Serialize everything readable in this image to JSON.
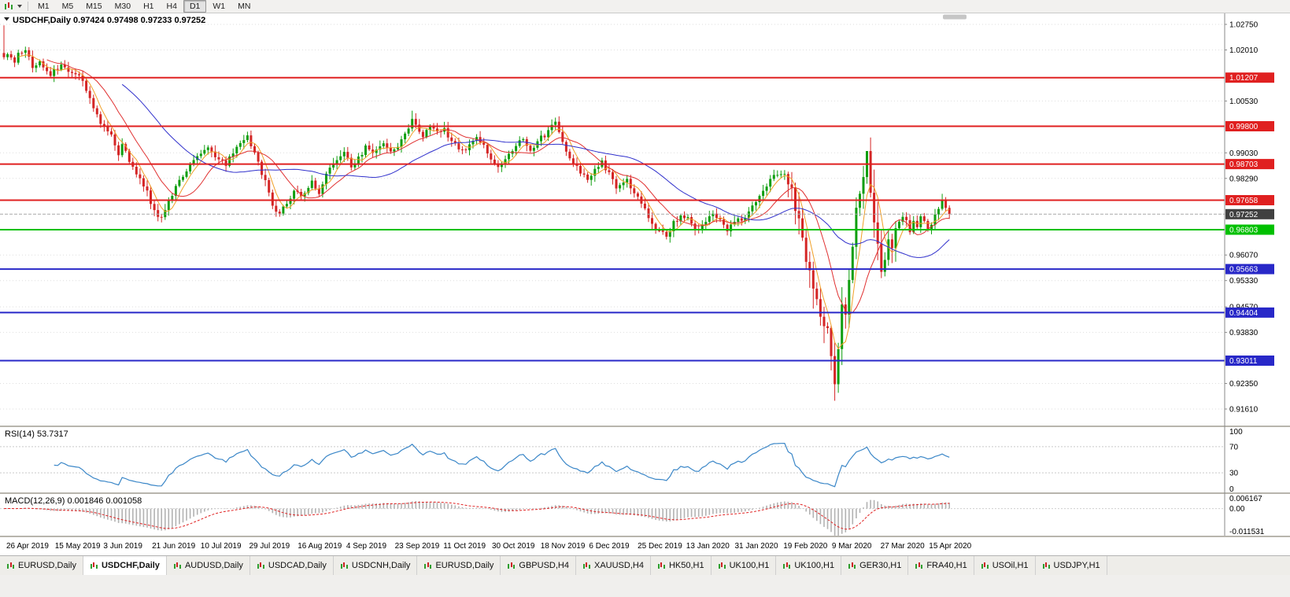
{
  "toolbar": {
    "timeframes": [
      {
        "label": "M1",
        "active": false
      },
      {
        "label": "M5",
        "active": false
      },
      {
        "label": "M15",
        "active": false
      },
      {
        "label": "M30",
        "active": false
      },
      {
        "label": "H1",
        "active": false
      },
      {
        "label": "H4",
        "active": false
      },
      {
        "label": "D1",
        "active": true
      },
      {
        "label": "W1",
        "active": false
      },
      {
        "label": "MN",
        "active": false
      }
    ]
  },
  "header": {
    "ohlc_line": "USDCHF,Daily 0.97424 0.97498 0.97233 0.97252"
  },
  "chart_data": {
    "type": "candlestick",
    "symbol": "USDCHF",
    "timeframe": "Daily",
    "ohlc_display": {
      "open": "0.97424",
      "high": "0.97498",
      "low": "0.97233",
      "close": "0.97252"
    },
    "up_color": "#0f9e0f",
    "down_color": "#d42525",
    "candles_count": 265,
    "close_waypoints": [
      [
        0,
        1.018
      ],
      [
        1,
        1.0195
      ],
      [
        3,
        1.016
      ],
      [
        4,
        1.0185
      ],
      [
        6,
        1.0205
      ],
      [
        8,
        1.015
      ],
      [
        10,
        1.0165
      ],
      [
        13,
        1.013
      ],
      [
        16,
        1.0155
      ],
      [
        19,
        1.014
      ],
      [
        21,
        1.0125
      ],
      [
        23,
        1.009
      ],
      [
        25,
        1.003
      ],
      [
        27,
        0.999
      ],
      [
        30,
        0.995
      ],
      [
        32,
        0.99
      ],
      [
        33,
        0.9935
      ],
      [
        35,
        0.988
      ],
      [
        37,
        0.9845
      ],
      [
        40,
        0.979
      ],
      [
        42,
        0.973
      ],
      [
        44,
        0.9715
      ],
      [
        46,
        0.976
      ],
      [
        48,
        0.981
      ],
      [
        51,
        0.9855
      ],
      [
        53,
        0.9885
      ],
      [
        55,
        0.9905
      ],
      [
        57,
        0.9925
      ],
      [
        59,
        0.989
      ],
      [
        62,
        0.987
      ],
      [
        64,
        0.99
      ],
      [
        66,
        0.9935
      ],
      [
        68,
        0.995
      ],
      [
        70,
        0.99
      ],
      [
        73,
        0.982
      ],
      [
        75,
        0.975
      ],
      [
        77,
        0.972
      ],
      [
        79,
        0.976
      ],
      [
        81,
        0.979
      ],
      [
        84,
        0.978
      ],
      [
        86,
        0.9815
      ],
      [
        88,
        0.979
      ],
      [
        90,
        0.984
      ],
      [
        92,
        0.987
      ],
      [
        95,
        0.99
      ],
      [
        97,
        0.9865
      ],
      [
        99,
        0.9885
      ],
      [
        101,
        0.992
      ],
      [
        103,
        0.9905
      ],
      [
        106,
        0.9935
      ],
      [
        108,
        0.99
      ],
      [
        110,
        0.992
      ],
      [
        112,
        0.9965
      ],
      [
        114,
        0.9995
      ],
      [
        117,
        0.9955
      ],
      [
        119,
        0.9985
      ],
      [
        121,
        0.996
      ],
      [
        123,
        0.9975
      ],
      [
        125,
        0.9935
      ],
      [
        128,
        0.9905
      ],
      [
        130,
        0.993
      ],
      [
        132,
        0.9955
      ],
      [
        134,
        0.992
      ],
      [
        136,
        0.989
      ],
      [
        138,
        0.986
      ],
      [
        141,
        0.99
      ],
      [
        143,
        0.993
      ],
      [
        145,
        0.995
      ],
      [
        147,
        0.9905
      ],
      [
        149,
        0.9935
      ],
      [
        152,
        0.9965
      ],
      [
        154,
        0.999
      ],
      [
        156,
        0.993
      ],
      [
        158,
        0.989
      ],
      [
        160,
        0.986
      ],
      [
        163,
        0.983
      ],
      [
        165,
        0.985
      ],
      [
        167,
        0.988
      ],
      [
        169,
        0.984
      ],
      [
        171,
        0.98
      ],
      [
        174,
        0.982
      ],
      [
        176,
        0.978
      ],
      [
        178,
        0.976
      ],
      [
        180,
        0.972
      ],
      [
        182,
        0.968
      ],
      [
        185,
        0.9665
      ],
      [
        187,
        0.97
      ],
      [
        189,
        0.972
      ],
      [
        191,
        0.971
      ],
      [
        193,
        0.968
      ],
      [
        196,
        0.97
      ],
      [
        198,
        0.973
      ],
      [
        200,
        0.971
      ],
      [
        202,
        0.968
      ],
      [
        204,
        0.97
      ],
      [
        207,
        0.972
      ],
      [
        209,
        0.975
      ],
      [
        211,
        0.978
      ],
      [
        213,
        0.981
      ],
      [
        215,
        0.984
      ],
      [
        218,
        0.9845
      ],
      [
        219,
        0.983
      ],
      [
        220,
        0.979
      ],
      [
        221,
        0.975
      ],
      [
        222,
        0.97
      ],
      [
        223,
        0.965
      ],
      [
        224,
        0.96
      ],
      [
        225,
        0.956
      ],
      [
        226,
        0.953
      ],
      [
        227,
        0.948
      ],
      [
        229,
        0.942
      ],
      [
        230,
        0.938
      ],
      [
        231,
        0.933
      ],
      [
        232,
        0.925
      ],
      [
        233,
        0.935
      ],
      [
        234,
        0.945
      ],
      [
        235,
        0.942
      ],
      [
        236,
        0.955
      ],
      [
        237,
        0.965
      ],
      [
        238,
        0.975
      ],
      [
        240,
        0.985
      ],
      [
        241,
        0.9895
      ],
      [
        242,
        0.98
      ],
      [
        243,
        0.97
      ],
      [
        244,
        0.963
      ],
      [
        245,
        0.956
      ],
      [
        246,
        0.96
      ],
      [
        247,
        0.965
      ],
      [
        248,
        0.962
      ],
      [
        249,
        0.968
      ],
      [
        251,
        0.972
      ],
      [
        252,
        0.97
      ],
      [
        253,
        0.968
      ],
      [
        254,
        0.971
      ],
      [
        255,
        0.969
      ],
      [
        256,
        0.972
      ],
      [
        257,
        0.97
      ],
      [
        258,
        0.968
      ],
      [
        259,
        0.97
      ],
      [
        260,
        0.973
      ],
      [
        262,
        0.976
      ],
      [
        263,
        0.974
      ],
      [
        264,
        0.97252
      ]
    ],
    "spikes": [
      {
        "index": 0,
        "high": 1.0272
      },
      {
        "index": 114,
        "high": 1.0025
      },
      {
        "index": 154,
        "high": 1.0005
      },
      {
        "index": 232,
        "low": 0.9185
      },
      {
        "index": 241,
        "high": 0.9905
      }
    ],
    "moving_averages": [
      {
        "period": 5,
        "color": "#f0a028"
      },
      {
        "period": 13,
        "color": "#e03030"
      },
      {
        "period": 34,
        "color": "#3030cc"
      }
    ],
    "horizontal_lines": [
      {
        "price": 1.01207,
        "label": "1.01207",
        "color": "#e02020"
      },
      {
        "price": 0.998,
        "label": "0.99800",
        "color": "#e02020"
      },
      {
        "price": 0.98703,
        "label": "0.98703",
        "color": "#e02020"
      },
      {
        "price": 0.97658,
        "label": "0.97658",
        "color": "#e02020"
      },
      {
        "price": 0.96803,
        "label": "0.96803",
        "color": "#00c000"
      },
      {
        "price": 0.95663,
        "label": "0.95663",
        "color": "#2828c8"
      },
      {
        "price": 0.94404,
        "label": "0.94404",
        "color": "#2828c8"
      },
      {
        "price": 0.93011,
        "label": "0.93011",
        "color": "#2828c8"
      }
    ],
    "current_price": {
      "value": 0.97252,
      "label": "0.97252",
      "badge_color": "#404040"
    },
    "y_axis": {
      "min": 0.9161,
      "max": 1.0275,
      "ticks": [
        {
          "label": "1.02750",
          "value": 1.0275
        },
        {
          "label": "1.02010",
          "value": 1.0201
        },
        {
          "label": "1.00530",
          "value": 1.0053
        },
        {
          "label": "0.99030",
          "value": 0.9903
        },
        {
          "label": "0.98290",
          "value": 0.9829
        },
        {
          "label": "0.96070",
          "value": 0.9607
        },
        {
          "label": "0.95330",
          "value": 0.9533
        },
        {
          "label": "0.94570",
          "value": 0.9457
        },
        {
          "label": "0.93830",
          "value": 0.9383
        },
        {
          "label": "0.92350",
          "value": 0.9235
        },
        {
          "label": "0.91610",
          "value": 0.9161
        }
      ]
    },
    "x_labels": [
      "26 Apr 2019",
      "15 May 2019",
      "3 Jun 2019",
      "21 Jun 2019",
      "10 Jul 2019",
      "29 Jul 2019",
      "16 Aug 2019",
      "4 Sep 2019",
      "23 Sep 2019",
      "11 Oct 2019",
      "30 Oct 2019",
      "18 Nov 2019",
      "6 Dec 2019",
      "25 Dec 2019",
      "13 Jan 2020",
      "31 Jan 2020",
      "19 Feb 2020",
      "9 Mar 2020",
      "27 Mar 2020",
      "15 Apr 2020"
    ],
    "indicators": [
      {
        "name": "RSI",
        "label": "RSI(14) 53.7317",
        "period": 14,
        "value": 53.7317,
        "levels": [
          100,
          70,
          30,
          0
        ],
        "line_color": "#3b87c8"
      },
      {
        "name": "MACD",
        "label": "MACD(12,26,9) 0.001846 0.001058",
        "params": "12,26,9",
        "main_value": 0.001846,
        "signal_value": 0.001058,
        "axis_labels": [
          "0.006167",
          "0.00",
          "-0.011531"
        ],
        "histogram_color": "#b2b2b2",
        "signal_color": "#e02222"
      }
    ]
  },
  "tabs": [
    {
      "label": "EURUSD,Daily",
      "active": false
    },
    {
      "label": "USDCHF,Daily",
      "active": true
    },
    {
      "label": "AUDUSD,Daily",
      "active": false
    },
    {
      "label": "USDCAD,Daily",
      "active": false
    },
    {
      "label": "USDCNH,Daily",
      "active": false
    },
    {
      "label": "EURUSD,Daily",
      "active": false
    },
    {
      "label": "GBPUSD,H4",
      "active": false
    },
    {
      "label": "XAUUSD,H4",
      "active": false
    },
    {
      "label": "HK50,H1",
      "active": false
    },
    {
      "label": "UK100,H1",
      "active": false
    },
    {
      "label": "UK100,H1",
      "active": false
    },
    {
      "label": "GER30,H1",
      "active": false
    },
    {
      "label": "FRA40,H1",
      "active": false
    },
    {
      "label": "USOil,H1",
      "active": false
    },
    {
      "label": "USDJPY,H1",
      "active": false
    }
  ]
}
